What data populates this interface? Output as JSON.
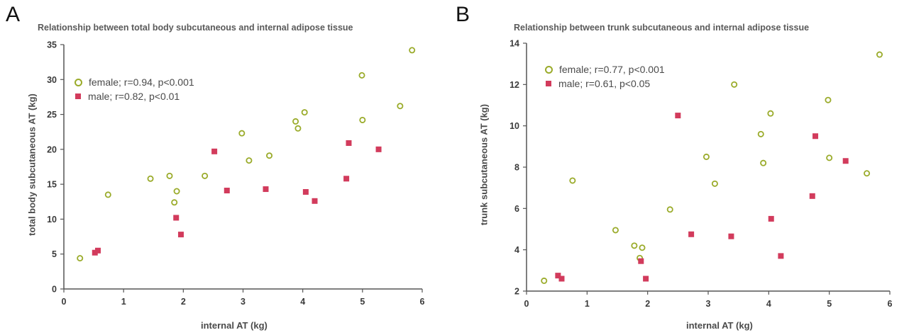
{
  "chart_data": [
    {
      "panel_letter": "A",
      "type": "scatter",
      "title": "Relationship between total body subcutaneous and internal adipose tissue",
      "xlabel": "internal AT (kg)",
      "ylabel": "total body subcutaneous AT (kg)",
      "xlim": [
        0,
        6
      ],
      "ylim": [
        0,
        35
      ],
      "xticks": [
        0,
        1,
        2,
        3,
        4,
        5,
        6
      ],
      "yticks": [
        0,
        5,
        10,
        15,
        20,
        25,
        30,
        35
      ],
      "legend_position": "top-left",
      "series": [
        {
          "name": "female; r=0.94, p<0.001",
          "marker": "open-circle",
          "color": "#9aab2a",
          "points": [
            [
              0.27,
              4.4
            ],
            [
              0.74,
              13.5
            ],
            [
              1.45,
              15.8
            ],
            [
              1.77,
              16.2
            ],
            [
              1.85,
              12.4
            ],
            [
              1.89,
              14.0
            ],
            [
              2.36,
              16.2
            ],
            [
              2.98,
              22.3
            ],
            [
              3.1,
              18.4
            ],
            [
              3.44,
              19.1
            ],
            [
              3.88,
              24.0
            ],
            [
              3.92,
              23.0
            ],
            [
              4.03,
              25.3
            ],
            [
              4.99,
              30.6
            ],
            [
              5.0,
              24.2
            ],
            [
              5.63,
              26.2
            ],
            [
              5.83,
              34.2
            ]
          ]
        },
        {
          "name": "male; r=0.82, p<0.01",
          "marker": "filled-square",
          "color": "#d23b5c",
          "points": [
            [
              0.52,
              5.2
            ],
            [
              0.57,
              5.5
            ],
            [
              1.88,
              10.2
            ],
            [
              1.96,
              7.8
            ],
            [
              2.52,
              19.7
            ],
            [
              2.73,
              14.1
            ],
            [
              3.38,
              14.3
            ],
            [
              4.05,
              13.9
            ],
            [
              4.2,
              12.6
            ],
            [
              4.73,
              15.8
            ],
            [
              4.77,
              20.9
            ],
            [
              5.27,
              20.0
            ]
          ]
        }
      ]
    },
    {
      "panel_letter": "B",
      "type": "scatter",
      "title": "Relationship between trunk subcutaneous and internal adipose tissue",
      "xlabel": "internal AT (kg)",
      "ylabel": "trunk subcutaneous AT (kg)",
      "xlim": [
        0,
        6
      ],
      "ylim": [
        2,
        14
      ],
      "xticks": [
        0,
        1,
        2,
        3,
        4,
        5,
        6
      ],
      "yticks": [
        2,
        4,
        6,
        8,
        10,
        12,
        14
      ],
      "legend_position": "top-left",
      "series": [
        {
          "name": "female; r=0.77, p<0.001",
          "marker": "open-circle",
          "color": "#9aab2a",
          "points": [
            [
              0.29,
              2.5
            ],
            [
              0.76,
              7.35
            ],
            [
              1.47,
              4.95
            ],
            [
              1.78,
              4.2
            ],
            [
              1.87,
              3.6
            ],
            [
              1.91,
              4.1
            ],
            [
              2.37,
              5.95
            ],
            [
              2.97,
              8.5
            ],
            [
              3.11,
              7.2
            ],
            [
              3.43,
              12.0
            ],
            [
              3.87,
              9.6
            ],
            [
              3.91,
              8.2
            ],
            [
              4.03,
              10.6
            ],
            [
              4.98,
              11.25
            ],
            [
              5.0,
              8.45
            ],
            [
              5.62,
              7.7
            ],
            [
              5.83,
              13.45
            ]
          ]
        },
        {
          "name": "male; r=0.61, p<0.05",
          "marker": "filled-square",
          "color": "#d23b5c",
          "points": [
            [
              0.52,
              2.75
            ],
            [
              0.58,
              2.6
            ],
            [
              1.89,
              3.45
            ],
            [
              1.97,
              2.6
            ],
            [
              2.5,
              10.5
            ],
            [
              2.72,
              4.75
            ],
            [
              3.38,
              4.65
            ],
            [
              4.04,
              5.5
            ],
            [
              4.2,
              3.7
            ],
            [
              4.72,
              6.6
            ],
            [
              4.77,
              9.5
            ],
            [
              5.27,
              8.3
            ]
          ]
        }
      ]
    }
  ]
}
